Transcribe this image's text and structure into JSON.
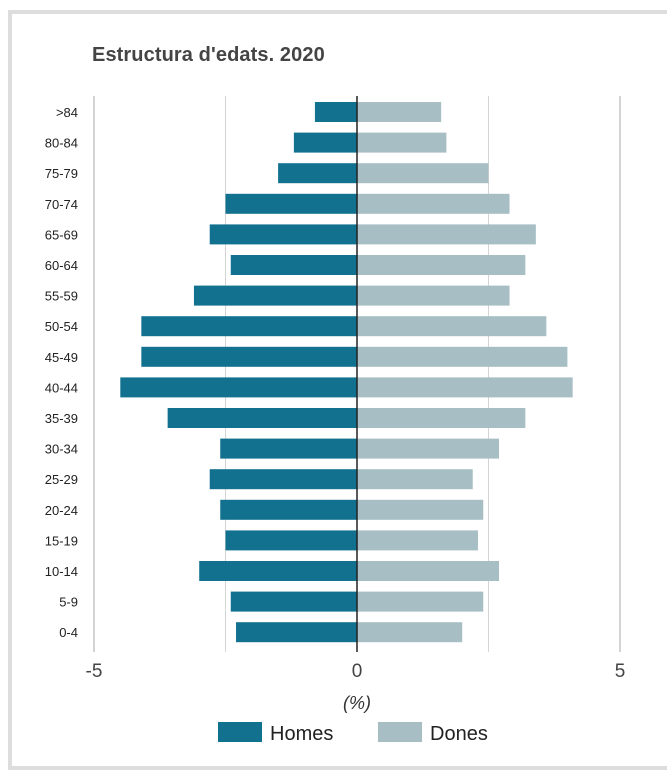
{
  "chart_data": {
    "type": "bar",
    "orientation": "horizontal",
    "title": "Estructura d'edats. 2020",
    "xlabel": "(%)",
    "xlim": [
      -5.3,
      5.3
    ],
    "xticks": [
      -5,
      0,
      5
    ],
    "categories": [
      ">84",
      "80-84",
      "75-79",
      "70-74",
      "65-69",
      "60-64",
      "55-59",
      "50-54",
      "45-49",
      "40-44",
      "35-39",
      "30-34",
      "25-29",
      "20-24",
      "15-19",
      "10-14",
      "5-9",
      "0-4"
    ],
    "series": [
      {
        "name": "Homes",
        "color": "#12718f",
        "values": [
          -0.8,
          -1.2,
          -1.5,
          -2.5,
          -2.8,
          -2.4,
          -3.1,
          -4.1,
          -4.1,
          -4.5,
          -3.6,
          -2.6,
          -2.8,
          -2.6,
          -2.5,
          -3.0,
          -2.4,
          -2.3
        ]
      },
      {
        "name": "Dones",
        "color": "#a7bfc4",
        "values": [
          1.6,
          1.7,
          2.5,
          2.9,
          3.4,
          3.2,
          2.9,
          3.6,
          4.0,
          4.1,
          3.2,
          2.7,
          2.2,
          2.4,
          2.3,
          2.7,
          2.4,
          2.0
        ]
      }
    ],
    "grid": true,
    "legend_position": "bottom"
  }
}
